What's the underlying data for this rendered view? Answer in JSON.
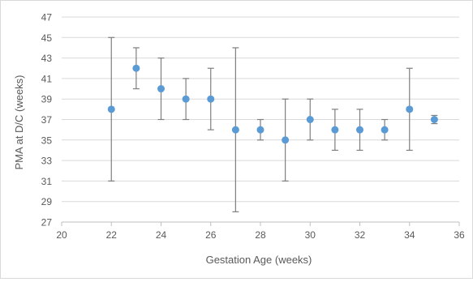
{
  "chart_data": {
    "type": "scatter",
    "title": "",
    "xlabel": "Gestation Age (weeks)",
    "ylabel": "PMA at D/C (weeks)",
    "xlim": [
      20,
      36
    ],
    "ylim": [
      27,
      47
    ],
    "xticks": [
      20,
      22,
      24,
      26,
      28,
      30,
      32,
      34,
      36
    ],
    "yticks": [
      27,
      29,
      31,
      33,
      35,
      37,
      39,
      41,
      43,
      45,
      47
    ],
    "grid": "horizontal",
    "legend": "none",
    "series": [
      {
        "color": "#5b9bd5",
        "error_bar_color": "#7f7f7f",
        "points": [
          {
            "x": 22,
            "y": 38,
            "low": 31,
            "high": 45
          },
          {
            "x": 23,
            "y": 42,
            "low": 40,
            "high": 44
          },
          {
            "x": 24,
            "y": 40,
            "low": 37,
            "high": 43
          },
          {
            "x": 25,
            "y": 39,
            "low": 37,
            "high": 41
          },
          {
            "x": 26,
            "y": 39,
            "low": 36,
            "high": 42
          },
          {
            "x": 27,
            "y": 36,
            "low": 28,
            "high": 44
          },
          {
            "x": 28,
            "y": 36,
            "low": 35,
            "high": 37
          },
          {
            "x": 29,
            "y": 35,
            "low": 31,
            "high": 39
          },
          {
            "x": 30,
            "y": 37,
            "low": 35,
            "high": 39
          },
          {
            "x": 31,
            "y": 36,
            "low": 34,
            "high": 38
          },
          {
            "x": 32,
            "y": 36,
            "low": 34,
            "high": 38
          },
          {
            "x": 33,
            "y": 36,
            "low": 35,
            "high": 37
          },
          {
            "x": 34,
            "y": 38,
            "low": 34,
            "high": 42
          },
          {
            "x": 35,
            "y": 37,
            "low": 36.6,
            "high": 37.4
          }
        ]
      }
    ]
  }
}
